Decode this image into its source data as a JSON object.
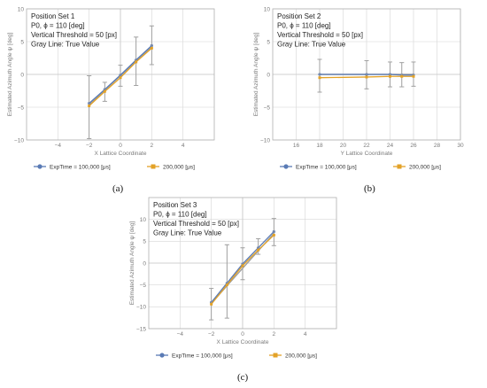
{
  "panel_labels": [
    "(a)",
    "(b)",
    "(c)"
  ],
  "legend": {
    "series1": "ExpTime = 100,000 [μs]",
    "series2": "200,000 [μs]"
  },
  "colors": {
    "series1": "#5a7bb5",
    "series2": "#e3a227",
    "true_line": "#9e9e9e"
  },
  "chart_data": [
    {
      "type": "line",
      "annotation": [
        "Position Set 1",
        "P0, ϕ = 110 [deg]",
        "Vertical Threshold = 50 [px]",
        "Gray Line: True Value"
      ],
      "xlabel": "X Lattice Coordinate",
      "ylabel": "Estimated Azimuth Angle ψ [deg]",
      "xlim": [
        -6,
        6
      ],
      "ylim": [
        -10,
        10
      ],
      "xticks": [
        -4,
        -2,
        0,
        2,
        4
      ],
      "yticks": [
        -10,
        -5,
        0,
        5,
        10
      ],
      "true_x": [
        -2,
        2
      ],
      "true_y": [
        -4.6,
        4.2
      ],
      "series": [
        {
          "name": "ExpTime = 100,000 [μs]",
          "x": [
            -2,
            -1,
            0,
            1,
            2
          ],
          "y": [
            -4.4,
            -2.3,
            -0.1,
            2.2,
            4.4
          ],
          "err_low": [
            -9.8,
            -4.1,
            -1.8,
            -1.7,
            1.5
          ],
          "err_high": [
            -0.2,
            -1.2,
            1.4,
            5.7,
            7.4
          ]
        },
        {
          "name": "200,000 [μs]",
          "x": [
            -2,
            -1,
            0,
            1,
            2
          ],
          "y": [
            -4.8,
            -2.6,
            -0.5,
            1.9,
            4.0
          ],
          "err_low": [
            -9.8,
            -4.1,
            -1.8,
            -1.7,
            1.5
          ],
          "err_high": [
            -0.2,
            -1.2,
            1.4,
            5.7,
            7.4
          ]
        }
      ]
    },
    {
      "type": "line",
      "annotation": [
        "Position Set 2",
        "P0, ϕ = 110 [deg]",
        "Vertical Threshold = 50 [px]",
        "Gray Line: True Value"
      ],
      "xlabel": "Y Lattice Coordinate",
      "ylabel": "Estimated Azimuth Angle ψ [deg]",
      "xlim": [
        14,
        30
      ],
      "ylim": [
        -10,
        10
      ],
      "xticks": [
        16,
        18,
        20,
        22,
        24,
        26,
        28,
        30
      ],
      "yticks": [
        -10,
        -5,
        0,
        5,
        10
      ],
      "true_x": [
        18,
        26
      ],
      "true_y": [
        0,
        0
      ],
      "series": [
        {
          "name": "ExpTime = 100,000 [μs]",
          "x": [
            18,
            22,
            24,
            25,
            26
          ],
          "y": [
            0.0,
            0.0,
            0.0,
            -0.1,
            -0.1
          ],
          "err_low": [
            -2.7,
            -2.2,
            -1.9,
            -1.9,
            -1.8
          ],
          "err_high": [
            2.3,
            2.1,
            1.9,
            1.8,
            1.9
          ]
        },
        {
          "name": "200,000 [μs]",
          "x": [
            18,
            22,
            24,
            25,
            26
          ],
          "y": [
            -0.5,
            -0.4,
            -0.3,
            -0.3,
            -0.3
          ],
          "err_low": [
            -2.7,
            -2.2,
            -1.9,
            -1.9,
            -1.8
          ],
          "err_high": [
            2.3,
            2.1,
            1.9,
            1.8,
            1.9
          ]
        }
      ]
    },
    {
      "type": "line",
      "annotation": [
        "Position Set 3",
        "P0, ϕ = 110 [deg]",
        "Vertical Threshold = 50 [px]",
        "Gray Line: True Value"
      ],
      "xlabel": "X Lattice Coordinate",
      "ylabel": "Estimated Azimuth Angle ψ [deg]",
      "xlim": [
        -6,
        6
      ],
      "ylim": [
        -15,
        15
      ],
      "xticks": [
        -4,
        -2,
        0,
        2,
        4
      ],
      "yticks": [
        -15,
        -10,
        -5,
        0,
        5,
        10
      ],
      "true_x": [
        -2,
        2
      ],
      "true_y": [
        -9.2,
        6.8
      ],
      "series": [
        {
          "name": "ExpTime = 100,000 [μs]",
          "x": [
            -2,
            -1,
            0,
            1,
            2
          ],
          "y": [
            -9.0,
            -4.6,
            -0.2,
            3.5,
            7.2
          ],
          "err_low": [
            -13.0,
            -12.6,
            -3.8,
            2.0,
            4.0
          ],
          "err_high": [
            -5.8,
            4.2,
            3.5,
            5.6,
            10.2
          ]
        },
        {
          "name": "200,000 [μs]",
          "x": [
            -2,
            -1,
            0,
            1,
            2
          ],
          "y": [
            -9.4,
            -5.0,
            -0.6,
            3.0,
            6.4
          ],
          "err_low": [
            -13.0,
            -12.6,
            -3.8,
            2.0,
            4.0
          ],
          "err_high": [
            -5.8,
            4.2,
            3.5,
            5.6,
            10.2
          ]
        }
      ]
    }
  ]
}
